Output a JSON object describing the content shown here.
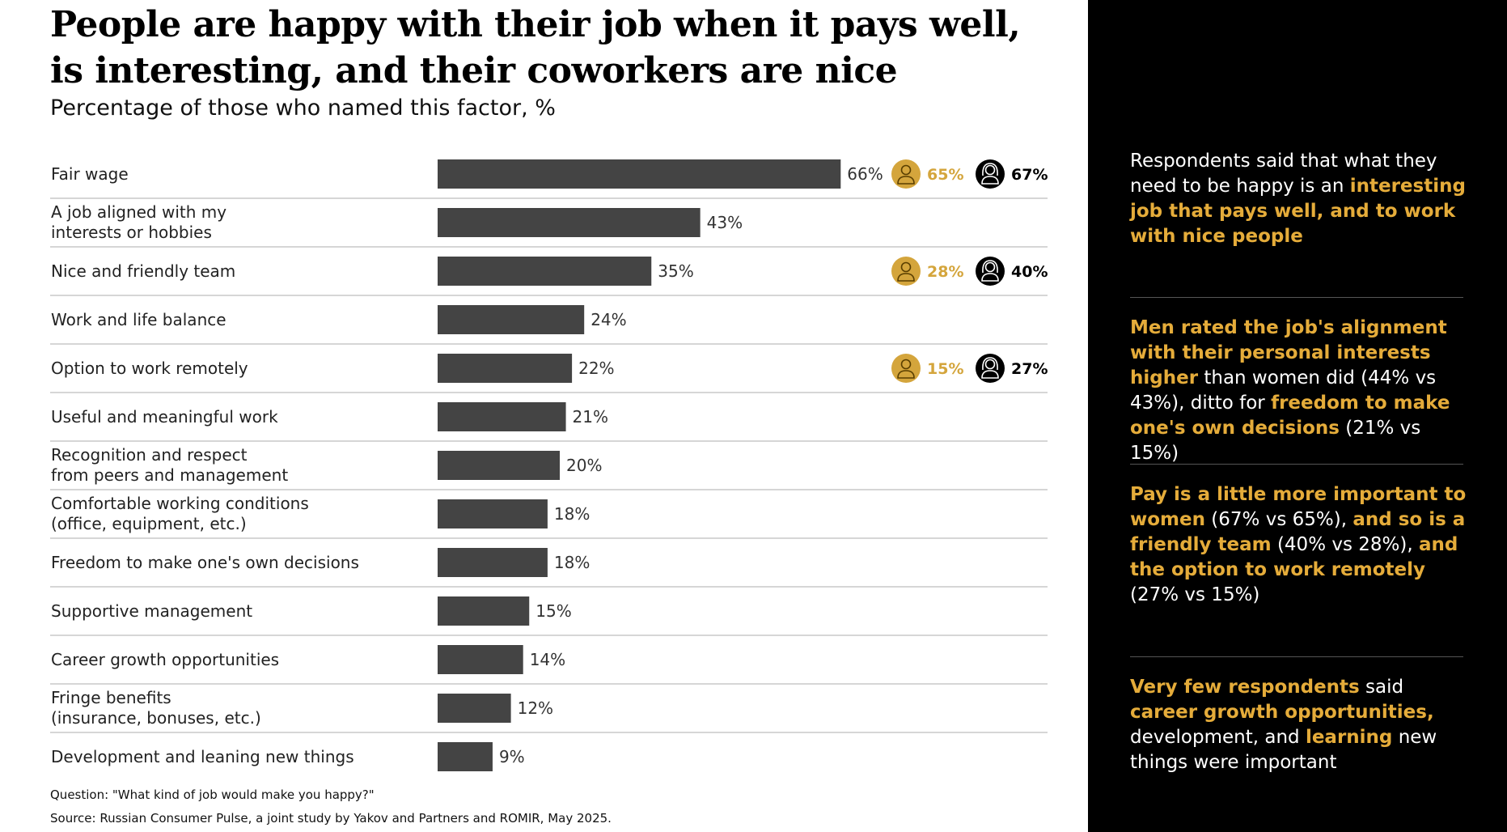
{
  "title_line1": "People are happy with their job when it pays well,",
  "title_line2": "is interesting, and their coworkers are nice",
  "subtitle": "Percentage of those who named this factor, %",
  "colors": {
    "bar": "#444444",
    "men": "#d4a53c",
    "women": "#000000",
    "highlight": "#e5ac3a",
    "panel_bg": "#000000"
  },
  "icons": {
    "men": "man-icon",
    "women": "woman-icon"
  },
  "chart_data": {
    "type": "bar",
    "orientation": "horizontal",
    "title": "People are happy with their job when it pays well, is interesting, and their coworkers are nice",
    "subtitle": "Percentage of those who named this factor, %",
    "unit": "%",
    "xlim": [
      0,
      100
    ],
    "grid": false,
    "categories": [
      [
        "Fair wage"
      ],
      [
        "A job aligned with my",
        "interests or hobbies"
      ],
      [
        "Nice and friendly team"
      ],
      [
        "Work and life balance"
      ],
      [
        "Option to work remotely"
      ],
      [
        "Useful and meaningful work"
      ],
      [
        "Recognition and respect",
        "from peers and management"
      ],
      [
        "Comfortable working conditions",
        "(office, equipment, etc.)"
      ],
      [
        "Freedom to make one's own decisions"
      ],
      [
        "Supportive management"
      ],
      [
        "Career growth opportunities"
      ],
      [
        "Fringe benefits",
        "(insurance, bonuses, etc.)"
      ],
      [
        "Development and leaning new things"
      ]
    ],
    "values": [
      66,
      43,
      35,
      24,
      22,
      21,
      20,
      18,
      18,
      15,
      14,
      12,
      9
    ],
    "value_labels": [
      "66%",
      "43%",
      "35%",
      "24%",
      "22%",
      "21%",
      "20%",
      "18%",
      "18%",
      "15%",
      "14%",
      "12%",
      "9%"
    ],
    "gender_breakdown": [
      {
        "row": 0,
        "men": 65,
        "men_label": "65%",
        "women": 67,
        "women_label": "67%"
      },
      {
        "row": 2,
        "men": 28,
        "men_label": "28%",
        "women": 40,
        "women_label": "40%"
      },
      {
        "row": 4,
        "men": 15,
        "men_label": "15%",
        "women": 27,
        "women_label": "27%"
      }
    ]
  },
  "footer": {
    "question": "Question: \"What kind of job would make you happy?\"",
    "source": "Source: Russian Consumer Pulse, a joint study by Yakov and Partners and ROMIR, May 2025."
  },
  "panel": {
    "block1": [
      {
        "t": "Respondents said that what they need to be happy is an ",
        "h": false
      },
      {
        "t": "interesting job that pays well, and to work with nice people",
        "h": true
      }
    ],
    "block2": [
      {
        "t": "Men rated the job's alignment with their personal interests higher",
        "h": true
      },
      {
        "t": " than women did (44% vs 43%), ditto for ",
        "h": false
      },
      {
        "t": "freedom to make one's own decisions",
        "h": true
      },
      {
        "t": " (21% vs 15%)",
        "h": false
      }
    ],
    "block3": [
      {
        "t": "Pay is a little more important to women",
        "h": true
      },
      {
        "t": " (67% vs 65%), ",
        "h": false
      },
      {
        "t": "and so is a friendly team",
        "h": true
      },
      {
        "t": " (40% vs 28%), ",
        "h": false
      },
      {
        "t": "and the option to work remotely",
        "h": true
      },
      {
        "t": " (27% vs 15%)",
        "h": false
      }
    ],
    "block4": [
      {
        "t": "Very few respondents",
        "h": true
      },
      {
        "t": " said ",
        "h": false
      },
      {
        "t": "career growth opportunities,",
        "h": true
      },
      {
        "t": " development, and ",
        "h": false
      },
      {
        "t": "learning",
        "h": true
      },
      {
        "t": " new things were important",
        "h": false
      }
    ]
  }
}
